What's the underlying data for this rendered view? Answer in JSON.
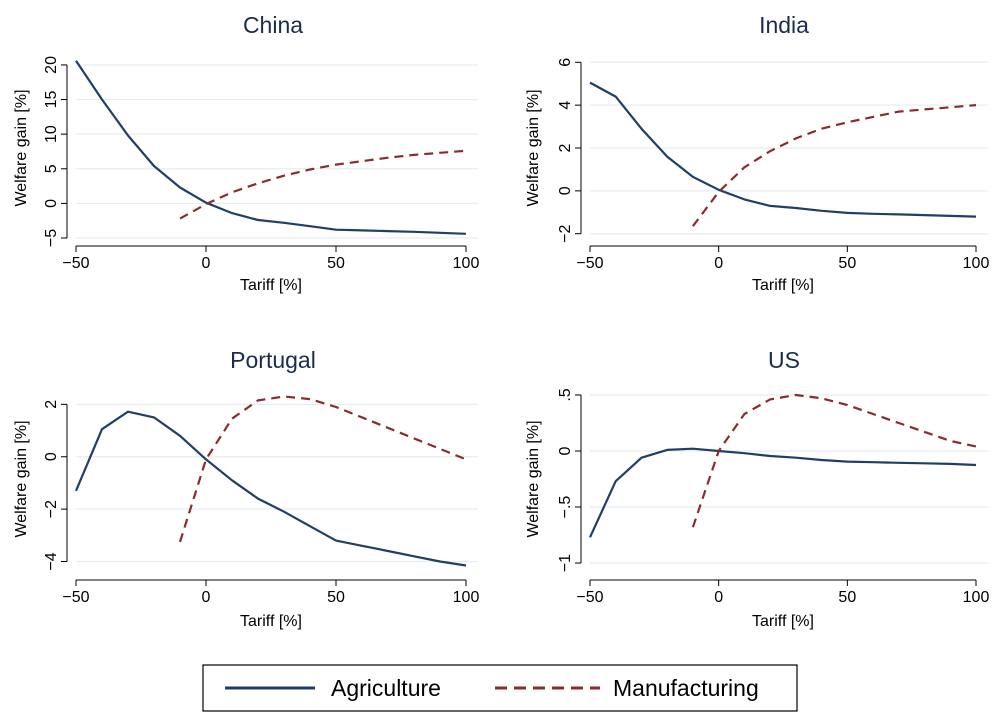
{
  "chart_data": [
    {
      "type": "line",
      "title": "China",
      "xlabel": "Tariff [%]",
      "ylabel": "Welfare gain [%]",
      "xlim": [
        -50,
        100
      ],
      "ylim": [
        -5,
        21
      ],
      "xticks": [
        -50,
        0,
        50,
        100
      ],
      "xtick_labels": [
        "−50",
        "0",
        "50",
        "100"
      ],
      "yticks": [
        -5,
        0,
        5,
        10,
        15,
        20
      ],
      "ytick_labels": [
        "−5",
        "0",
        "5",
        "10",
        "15",
        "20"
      ],
      "grid": true,
      "series": [
        {
          "name": "Agriculture",
          "x": [
            -50,
            -40,
            -30,
            -20,
            -10,
            0,
            10,
            20,
            30,
            40,
            50,
            60,
            70,
            80,
            90,
            100
          ],
          "values": [
            20.6,
            15.0,
            9.8,
            5.4,
            2.3,
            0.1,
            -1.4,
            -2.4,
            -2.8,
            -3.3,
            -3.8,
            -3.9,
            -4.0,
            -4.1,
            -4.25,
            -4.4
          ]
        },
        {
          "name": "Manufacturing",
          "x": [
            -10,
            0,
            10,
            20,
            30,
            40,
            50,
            60,
            70,
            80,
            90,
            100
          ],
          "values": [
            -2.2,
            -0.1,
            1.6,
            2.9,
            4.0,
            4.9,
            5.6,
            6.1,
            6.6,
            7.0,
            7.3,
            7.6
          ]
        }
      ]
    },
    {
      "type": "line",
      "title": "India",
      "xlabel": "Tariff [%]",
      "ylabel": "Welfare gain [%]",
      "xlim": [
        -50,
        100
      ],
      "ylim": [
        -2.2,
        6.2
      ],
      "xticks": [
        -50,
        0,
        50,
        100
      ],
      "xtick_labels": [
        "−50",
        "0",
        "50",
        "100"
      ],
      "yticks": [
        -2,
        0,
        2,
        4,
        6
      ],
      "ytick_labels": [
        "−2",
        "0",
        "2",
        "4",
        "6"
      ],
      "grid": true,
      "series": [
        {
          "name": "Agriculture",
          "x": [
            -50,
            -40,
            -30,
            -20,
            -10,
            0,
            10,
            20,
            30,
            40,
            50,
            60,
            70,
            80,
            90,
            100
          ],
          "values": [
            5.05,
            4.4,
            2.9,
            1.6,
            0.65,
            0.05,
            -0.4,
            -0.7,
            -0.8,
            -0.93,
            -1.03,
            -1.07,
            -1.1,
            -1.13,
            -1.17,
            -1.2
          ]
        },
        {
          "name": "Manufacturing",
          "x": [
            -10,
            0,
            10,
            20,
            30,
            40,
            50,
            60,
            70,
            80,
            90,
            100
          ],
          "values": [
            -1.65,
            -0.05,
            1.1,
            1.85,
            2.45,
            2.9,
            3.2,
            3.45,
            3.7,
            3.8,
            3.9,
            4.0
          ]
        }
      ]
    },
    {
      "type": "line",
      "title": "Portugal",
      "xlabel": "Tariff [%]",
      "ylabel": "Welfare gain [%]",
      "xlim": [
        -50,
        100
      ],
      "ylim": [
        -4.4,
        2.7
      ],
      "xticks": [
        -50,
        0,
        50,
        100
      ],
      "xtick_labels": [
        "−50",
        "0",
        "50",
        "100"
      ],
      "yticks": [
        -4,
        -2,
        0,
        2
      ],
      "ytick_labels": [
        "−4",
        "−2",
        "0",
        "2"
      ],
      "grid": true,
      "series": [
        {
          "name": "Agriculture",
          "x": [
            -50,
            -40,
            -30,
            -20,
            -10,
            0,
            10,
            20,
            30,
            40,
            50,
            60,
            70,
            80,
            90,
            100
          ],
          "values": [
            -1.3,
            1.05,
            1.72,
            1.5,
            0.8,
            -0.1,
            -0.9,
            -1.6,
            -2.1,
            -2.65,
            -3.2,
            -3.4,
            -3.6,
            -3.8,
            -4.0,
            -4.15
          ]
        },
        {
          "name": "Manufacturing",
          "x": [
            -10,
            0,
            10,
            20,
            30,
            40,
            50,
            60,
            70,
            80,
            90,
            100
          ],
          "values": [
            -3.25,
            -0.1,
            1.45,
            2.15,
            2.3,
            2.2,
            1.9,
            1.5,
            1.1,
            0.7,
            0.3,
            -0.1
          ]
        }
      ]
    },
    {
      "type": "line",
      "title": "US",
      "xlabel": "Tariff [%]",
      "ylabel": "Welfare gain [%]",
      "xlim": [
        -50,
        100
      ],
      "ylim": [
        -1.08,
        0.58
      ],
      "xticks": [
        -50,
        0,
        50,
        100
      ],
      "xtick_labels": [
        "−50",
        "0",
        "50",
        "100"
      ],
      "yticks": [
        -1,
        -0.5,
        0,
        0.5
      ],
      "ytick_labels": [
        "−1",
        "−.5",
        "0",
        ".5"
      ],
      "grid": true,
      "series": [
        {
          "name": "Agriculture",
          "x": [
            -50,
            -40,
            -30,
            -20,
            -10,
            0,
            10,
            20,
            30,
            40,
            50,
            60,
            70,
            80,
            90,
            100
          ],
          "values": [
            -0.77,
            -0.27,
            -0.06,
            0.01,
            0.02,
            0.0,
            -0.02,
            -0.045,
            -0.06,
            -0.08,
            -0.095,
            -0.1,
            -0.105,
            -0.11,
            -0.115,
            -0.125
          ]
        },
        {
          "name": "Manufacturing",
          "x": [
            -10,
            0,
            10,
            20,
            30,
            40,
            50,
            60,
            70,
            80,
            90,
            100
          ],
          "values": [
            -0.68,
            0.0,
            0.33,
            0.46,
            0.5,
            0.47,
            0.41,
            0.33,
            0.25,
            0.17,
            0.09,
            0.04
          ]
        }
      ]
    }
  ],
  "legend": {
    "items": [
      {
        "label": "Agriculture",
        "color": "#1f3f66",
        "dash": "solid"
      },
      {
        "label": "Manufacturing",
        "color": "#8b2a30",
        "dash": "dashed"
      }
    ],
    "placement": "bottom-center"
  },
  "colors": {
    "agriculture": "#1f3f66",
    "manufacturing": "#8b2a30",
    "grid": "#e7edf2",
    "title": "#1a2b4c"
  }
}
